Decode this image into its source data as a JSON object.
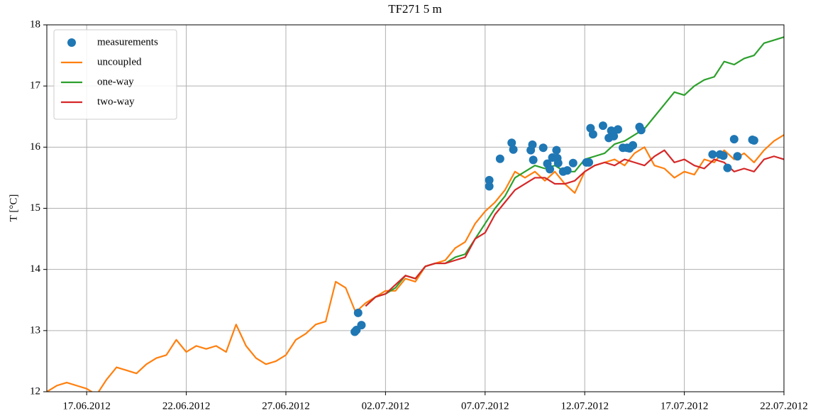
{
  "chart_data": {
    "type": "line",
    "title": "TF271 5 m",
    "y_label": "T [°C]",
    "xlim": [
      "2012-06-15",
      "2012-07-22"
    ],
    "xticks": [
      {
        "value": "2012-06-17",
        "label": "17.06.2012"
      },
      {
        "value": "2012-06-22",
        "label": "22.06.2012"
      },
      {
        "value": "2012-06-27",
        "label": "27.06.2012"
      },
      {
        "value": "2012-07-02",
        "label": "02.07.2012"
      },
      {
        "value": "2012-07-07",
        "label": "07.07.2012"
      },
      {
        "value": "2012-07-12",
        "label": "12.07.2012"
      },
      {
        "value": "2012-07-17",
        "label": "17.07.2012"
      },
      {
        "value": "2012-07-22",
        "label": "22.07.2012"
      }
    ],
    "ylim": [
      12,
      18
    ],
    "yticks": [
      12,
      13,
      14,
      15,
      16,
      17,
      18
    ],
    "grid": true,
    "legend": "upper left",
    "x": [
      "2012-06-15T00:00",
      "2012-06-15T12:00",
      "2012-06-16T00:00",
      "2012-06-16T12:00",
      "2012-06-17T00:00",
      "2012-06-17T12:00",
      "2012-06-18T00:00",
      "2012-06-18T12:00",
      "2012-06-19T00:00",
      "2012-06-19T12:00",
      "2012-06-20T00:00",
      "2012-06-20T12:00",
      "2012-06-21T00:00",
      "2012-06-21T12:00",
      "2012-06-22T00:00",
      "2012-06-22T12:00",
      "2012-06-23T00:00",
      "2012-06-23T12:00",
      "2012-06-24T00:00",
      "2012-06-24T12:00",
      "2012-06-25T00:00",
      "2012-06-25T12:00",
      "2012-06-26T00:00",
      "2012-06-26T12:00",
      "2012-06-27T00:00",
      "2012-06-27T12:00",
      "2012-06-28T00:00",
      "2012-06-28T12:00",
      "2012-06-29T00:00",
      "2012-06-29T12:00",
      "2012-06-30T00:00",
      "2012-06-30T12:00",
      "2012-07-01T00:00",
      "2012-07-01T12:00",
      "2012-07-02T00:00",
      "2012-07-02T12:00",
      "2012-07-03T00:00",
      "2012-07-03T12:00",
      "2012-07-04T00:00",
      "2012-07-04T12:00",
      "2012-07-05T00:00",
      "2012-07-05T12:00",
      "2012-07-06T00:00",
      "2012-07-06T12:00",
      "2012-07-07T00:00",
      "2012-07-07T12:00",
      "2012-07-08T00:00",
      "2012-07-08T12:00",
      "2012-07-09T00:00",
      "2012-07-09T12:00",
      "2012-07-10T00:00",
      "2012-07-10T12:00",
      "2012-07-11T00:00",
      "2012-07-11T12:00",
      "2012-07-12T00:00",
      "2012-07-12T12:00",
      "2012-07-13T00:00",
      "2012-07-13T12:00",
      "2012-07-14T00:00",
      "2012-07-14T12:00",
      "2012-07-15T00:00",
      "2012-07-15T12:00",
      "2012-07-16T00:00",
      "2012-07-16T12:00",
      "2012-07-17T00:00",
      "2012-07-17T12:00",
      "2012-07-18T00:00",
      "2012-07-18T12:00",
      "2012-07-19T00:00",
      "2012-07-19T12:00",
      "2012-07-20T00:00",
      "2012-07-20T12:00",
      "2012-07-21T00:00",
      "2012-07-21T12:00",
      "2012-07-22T00:00"
    ],
    "series": [
      {
        "name": "measurements",
        "type": "scatter",
        "color": "#1f77b4",
        "x": [
          "2012-06-30T11:00",
          "2012-06-30T13:00",
          "2012-06-30T15:00",
          "2012-06-30T19:00",
          "2012-07-07T05:00",
          "2012-07-07T05:00",
          "2012-07-07T18:00",
          "2012-07-08T08:00",
          "2012-07-08T10:00",
          "2012-07-09T07:00",
          "2012-07-09T09:00",
          "2012-07-09T10:00",
          "2012-07-09T22:00",
          "2012-07-10T03:00",
          "2012-07-10T06:00",
          "2012-07-10T09:00",
          "2012-07-10T14:00",
          "2012-07-10T15:00",
          "2012-07-10T16:00",
          "2012-07-10T22:00",
          "2012-07-11T03:00",
          "2012-07-11T10:00",
          "2012-07-12T02:00",
          "2012-07-12T05:00",
          "2012-07-12T07:00",
          "2012-07-12T10:00",
          "2012-07-12T22:00",
          "2012-07-13T05:00",
          "2012-07-13T08:00",
          "2012-07-13T11:00",
          "2012-07-13T16:00",
          "2012-07-13T22:00",
          "2012-07-14T03:00",
          "2012-07-14T06:00",
          "2012-07-14T10:00",
          "2012-07-14T18:00",
          "2012-07-14T20:00",
          "2012-07-18T10:00",
          "2012-07-18T19:00",
          "2012-07-18T23:00",
          "2012-07-19T04:00",
          "2012-07-19T12:00",
          "2012-07-19T16:00",
          "2012-07-20T10:00",
          "2012-07-20T12:00"
        ],
        "values": [
          12.98,
          13.01,
          13.29,
          13.09,
          15.46,
          15.36,
          15.81,
          16.07,
          15.96,
          15.95,
          16.04,
          15.79,
          15.99,
          15.73,
          15.64,
          15.83,
          15.95,
          15.82,
          15.74,
          15.6,
          15.62,
          15.74,
          15.75,
          15.75,
          16.31,
          16.21,
          16.35,
          16.15,
          16.27,
          16.18,
          16.29,
          15.99,
          15.99,
          15.98,
          16.03,
          16.33,
          16.28,
          15.88,
          15.88,
          15.86,
          15.66,
          16.13,
          15.85,
          16.12,
          16.11
        ]
      },
      {
        "name": "uncoupled",
        "color": "#ff7f0e",
        "values": [
          12.0,
          12.1,
          12.15,
          12.1,
          12.05,
          11.95,
          12.2,
          12.4,
          12.35,
          12.3,
          12.45,
          12.55,
          12.6,
          12.85,
          12.65,
          12.75,
          12.7,
          12.75,
          12.65,
          13.1,
          12.75,
          12.55,
          12.45,
          12.5,
          12.6,
          12.85,
          12.95,
          13.1,
          13.15,
          13.8,
          13.7,
          13.3,
          13.45,
          13.55,
          13.65,
          13.65,
          13.85,
          13.8,
          14.05,
          14.1,
          14.15,
          14.35,
          14.45,
          14.75,
          14.95,
          15.1,
          15.3,
          15.6,
          15.5,
          15.6,
          15.45,
          15.6,
          15.4,
          15.25,
          15.6,
          15.7,
          15.75,
          15.8,
          15.7,
          15.9,
          16.0,
          15.7,
          15.65,
          15.5,
          15.6,
          15.55,
          15.8,
          15.75,
          15.95,
          15.8,
          15.9,
          15.75,
          15.95,
          16.1,
          16.2
        ]
      },
      {
        "name": "one-way",
        "color": "#2ca02c",
        "values": [
          null,
          null,
          null,
          null,
          null,
          null,
          null,
          null,
          null,
          null,
          null,
          null,
          null,
          null,
          null,
          null,
          null,
          null,
          null,
          null,
          null,
          null,
          null,
          null,
          null,
          null,
          null,
          null,
          null,
          null,
          null,
          null,
          13.4,
          13.55,
          13.6,
          13.7,
          13.9,
          13.85,
          14.05,
          14.1,
          14.1,
          14.2,
          14.25,
          14.5,
          14.75,
          15.0,
          15.2,
          15.5,
          15.6,
          15.7,
          15.65,
          15.7,
          15.6,
          15.6,
          15.8,
          15.85,
          15.9,
          16.05,
          16.1,
          16.2,
          16.3,
          16.5,
          16.7,
          16.9,
          16.85,
          17.0,
          17.1,
          17.15,
          17.4,
          17.35,
          17.45,
          17.5,
          17.7,
          17.75,
          17.8
        ]
      },
      {
        "name": "two-way",
        "color": "#d62728",
        "values": [
          null,
          null,
          null,
          null,
          null,
          null,
          null,
          null,
          null,
          null,
          null,
          null,
          null,
          null,
          null,
          null,
          null,
          null,
          null,
          null,
          null,
          null,
          null,
          null,
          null,
          null,
          null,
          null,
          null,
          null,
          null,
          null,
          13.4,
          13.55,
          13.6,
          13.75,
          13.9,
          13.85,
          14.05,
          14.1,
          14.1,
          14.15,
          14.2,
          14.5,
          14.6,
          14.9,
          15.1,
          15.3,
          15.4,
          15.5,
          15.5,
          15.4,
          15.4,
          15.45,
          15.6,
          15.7,
          15.75,
          15.7,
          15.8,
          15.75,
          15.7,
          15.85,
          15.95,
          15.75,
          15.8,
          15.7,
          15.65,
          15.8,
          15.75,
          15.6,
          15.65,
          15.6,
          15.8,
          15.85,
          15.8
        ]
      }
    ]
  }
}
